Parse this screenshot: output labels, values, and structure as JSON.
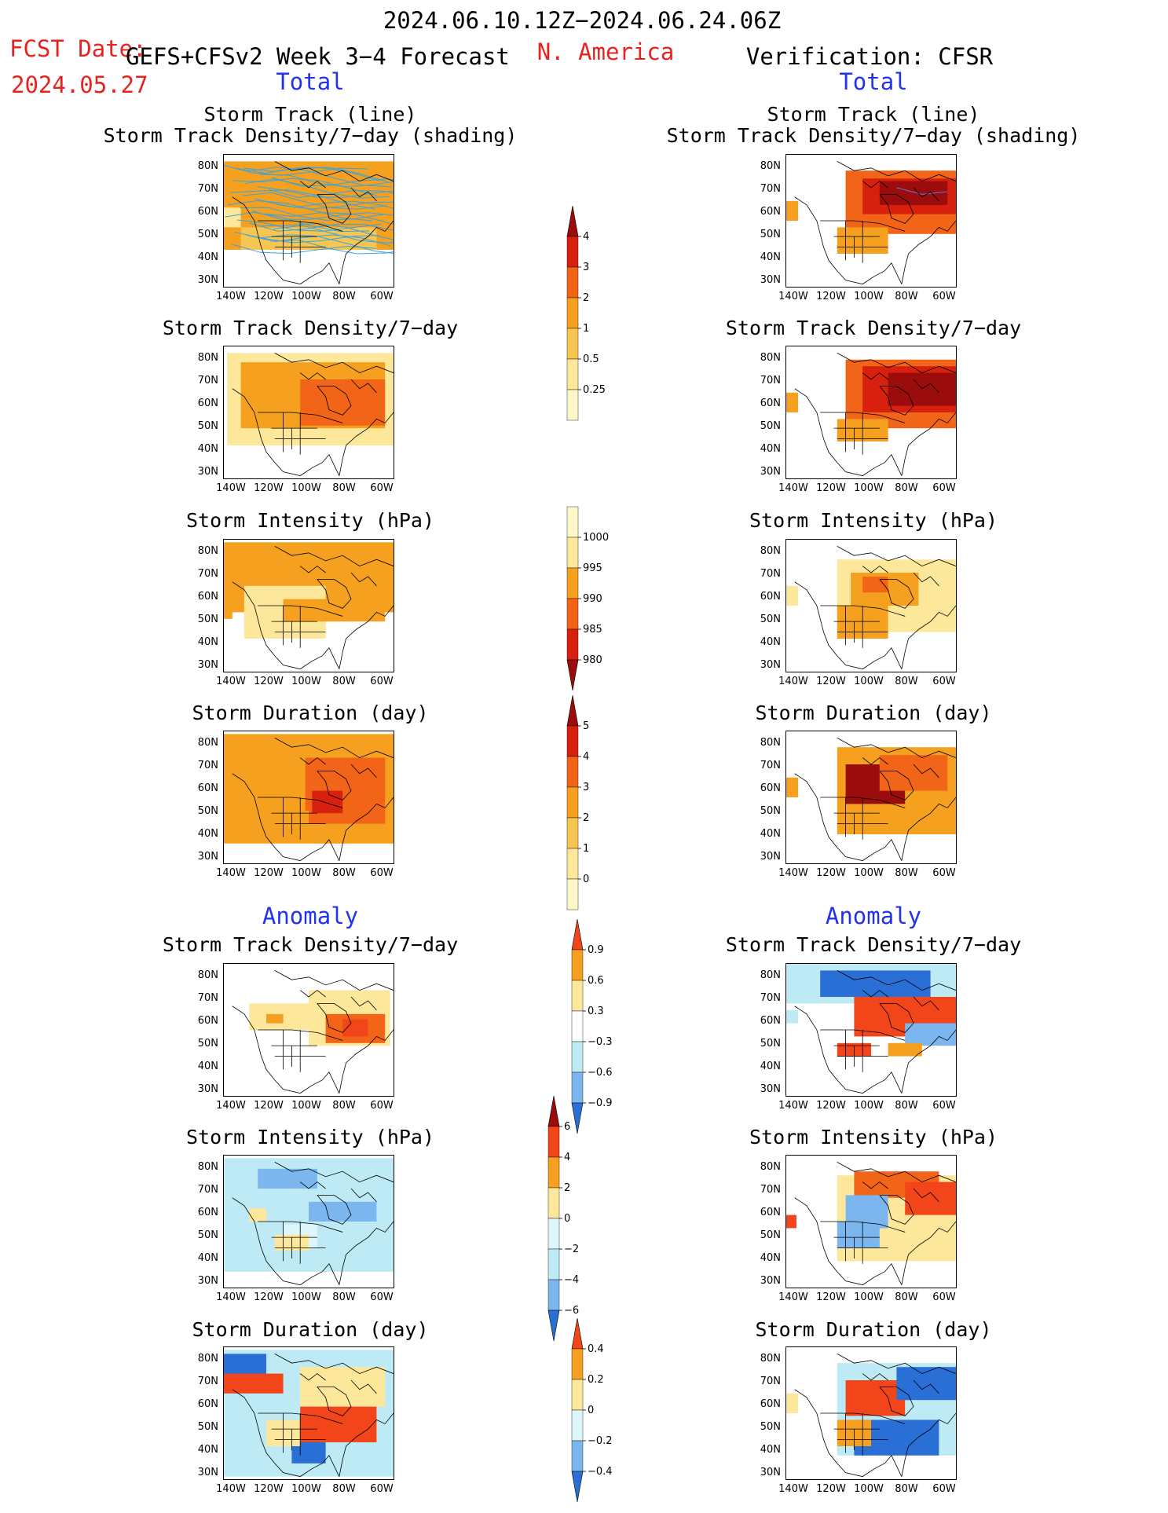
{
  "header": {
    "date_range": "2024.06.10.12Z−2024.06.24.06Z",
    "fcst_date_label": "FCST Date:",
    "fcst_date_value": "2024.05.27",
    "forecast_title": "GEFS+CFSv2 Week 3−4 Forecast",
    "region": "N. America",
    "verification": "Verification: CFSR",
    "left_total": "Total",
    "right_total": "Total"
  },
  "sections": {
    "anomaly_left": "Anomaly",
    "anomaly_right": "Anomaly"
  },
  "panel_titles": {
    "track_line": "Storm Track (line)",
    "track_shading": "Storm Track Density/7−day (shading)",
    "density": "Storm Track Density/7−day",
    "intensity": "Storm Intensity (hPa)",
    "duration": "Storm Duration (day)"
  },
  "axes": {
    "lat_labels": [
      "80N",
      "70N",
      "60N",
      "50N",
      "40N",
      "30N"
    ],
    "lon_labels": [
      "140W",
      "120W",
      "100W",
      "80W",
      "60W"
    ]
  },
  "colorbars": {
    "density_total": {
      "labels": [
        "4",
        "3",
        "2",
        "1",
        "0.5",
        "0.25"
      ],
      "colors": [
        "#9b0c0c",
        "#d8200f",
        "#f26417",
        "#f5a01e",
        "#f7c651",
        "#fde79a",
        "#fff7c9"
      ]
    },
    "intensity_total": {
      "labels": [
        "1000",
        "995",
        "990",
        "985",
        "980"
      ],
      "colors": [
        "#fff7c9",
        "#fde79a",
        "#f5a01e",
        "#f26417",
        "#d8200f",
        "#9b0c0c"
      ]
    },
    "duration_total": {
      "labels": [
        "5",
        "4",
        "3",
        "2",
        "1",
        "0"
      ],
      "colors": [
        "#9b0c0c",
        "#d8200f",
        "#f26417",
        "#f5a01e",
        "#f7c651",
        "#fde79a",
        "#fff7c9"
      ]
    },
    "density_anom": {
      "labels": [
        "0.9",
        "0.6",
        "0.3",
        "−0.3",
        "−0.6",
        "−0.9"
      ],
      "colors": [
        "#f2461a",
        "#f5a01e",
        "#fde79a",
        "#ffffff",
        "#bdeaf4",
        "#7bb6ee",
        "#2a6fd6"
      ]
    },
    "intensity_anom": {
      "labels": [
        "6",
        "4",
        "2",
        "0",
        "−2",
        "−4",
        "−6"
      ],
      "colors": [
        "#9b0c0c",
        "#f2461a",
        "#f5a01e",
        "#fde79a",
        "#ddf6fb",
        "#bdeaf4",
        "#7bb6ee",
        "#2a6fd6"
      ]
    },
    "duration_anom": {
      "labels": [
        "0.4",
        "0.2",
        "0",
        "−0.2",
        "−0.4"
      ],
      "colors": [
        "#f2461a",
        "#f5a01e",
        "#fde79a",
        "#ddf6fb",
        "#7bb6ee",
        "#2a6fd6"
      ]
    }
  },
  "colors": {
    "header_red": "#e8231f",
    "header_blue": "#2233ee",
    "storm_track_line": "#3aa3e0"
  }
}
